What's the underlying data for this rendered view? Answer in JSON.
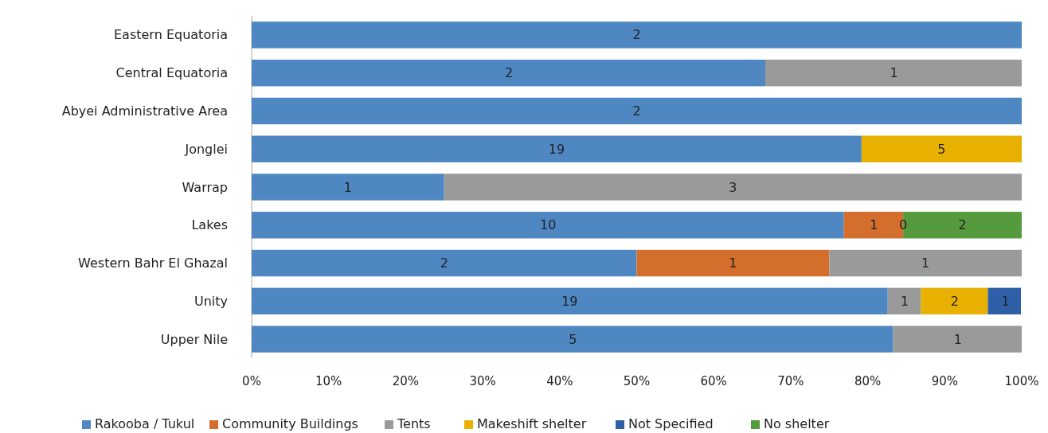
{
  "chart_data": {
    "type": "bar",
    "orientation": "horizontal",
    "stacked": true,
    "legend": "bottom",
    "grid": false,
    "categories": [
      "Eastern Equatoria",
      "Central Equatoria",
      "Abyei Administrative Area",
      "Jonglei",
      "Warrap",
      "Lakes",
      "Western Bahr El Ghazal",
      "Unity",
      "Upper Nile"
    ],
    "xlim": [
      0,
      100
    ],
    "xticks": [
      {
        "value": 0,
        "label": "0%"
      },
      {
        "value": 10,
        "label": "10%"
      },
      {
        "value": 20,
        "label": "20%"
      },
      {
        "value": 30,
        "label": "30%"
      },
      {
        "value": 40,
        "label": "40%"
      },
      {
        "value": 50,
        "label": "50%"
      },
      {
        "value": 60,
        "label": "60%"
      },
      {
        "value": 70,
        "label": "70%"
      },
      {
        "value": 80,
        "label": "80%"
      },
      {
        "value": 90,
        "label": "90%"
      },
      {
        "value": 100,
        "label": "100%"
      }
    ],
    "series": [
      {
        "name": "Rakooba / Tukul",
        "color": "#4f87c2",
        "values": [
          100,
          66.7,
          100,
          79.2,
          25,
          76.9,
          50,
          82.6,
          83.3
        ]
      },
      {
        "name": "Community Buildings",
        "color": "#d46e2c",
        "values": [
          null,
          null,
          null,
          null,
          null,
          7.7,
          25,
          null,
          null
        ]
      },
      {
        "name": "Tents",
        "color": "#9a9a9a",
        "values": [
          null,
          33.3,
          null,
          null,
          75,
          null,
          25,
          4.3,
          16.7
        ]
      },
      {
        "name": "Makeshift shelter",
        "color": "#e8b000",
        "values": [
          null,
          null,
          null,
          20.8,
          null,
          0,
          null,
          8.7,
          null
        ]
      },
      {
        "name": "Not Specified",
        "color": "#2f5fa6",
        "values": [
          null,
          null,
          null,
          null,
          null,
          null,
          null,
          4.3,
          null
        ]
      },
      {
        "name": "No shelter",
        "color": "#559a3c",
        "values": [
          null,
          null,
          null,
          null,
          null,
          15.4,
          null,
          null,
          null
        ]
      }
    ],
    "annotations": [
      {
        "text": "2",
        "x": 50,
        "y": "Eastern Equatoria"
      },
      {
        "text": "2",
        "x": 33.4,
        "y": "Central Equatoria"
      },
      {
        "text": "1",
        "x": 83.4,
        "y": "Central Equatoria"
      },
      {
        "text": "2",
        "x": 50,
        "y": "Abyei Administrative Area"
      },
      {
        "text": "19",
        "x": 39.6,
        "y": "Jonglei"
      },
      {
        "text": "5",
        "x": 89.6,
        "y": "Jonglei"
      },
      {
        "text": "1",
        "x": 12.5,
        "y": "Warrap"
      },
      {
        "text": "3",
        "x": 62.5,
        "y": "Warrap"
      },
      {
        "text": "10",
        "x": 38.5,
        "y": "Lakes"
      },
      {
        "text": "1",
        "x": 80.8,
        "y": "Lakes"
      },
      {
        "text": "0",
        "x": 84.6,
        "y": "Lakes"
      },
      {
        "text": "2",
        "x": 92.3,
        "y": "Lakes"
      },
      {
        "text": "2",
        "x": 25,
        "y": "Western Bahr El Ghazal"
      },
      {
        "text": "1",
        "x": 62.5,
        "y": "Western Bahr El Ghazal"
      },
      {
        "text": "1",
        "x": 87.5,
        "y": "Western Bahr El Ghazal"
      },
      {
        "text": "19",
        "x": 41.3,
        "y": "Unity"
      },
      {
        "text": "1",
        "x": 84.8,
        "y": "Unity"
      },
      {
        "text": "2",
        "x": 91.3,
        "y": "Unity"
      },
      {
        "text": "1",
        "x": 97.9,
        "y": "Unity"
      },
      {
        "text": "5",
        "x": 41.7,
        "y": "Upper Nile"
      },
      {
        "text": "1",
        "x": 91.7,
        "y": "Upper Nile"
      }
    ]
  }
}
